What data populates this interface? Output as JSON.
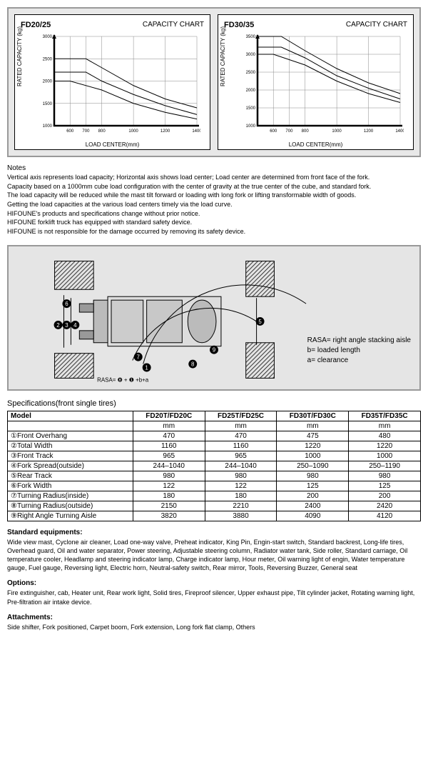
{
  "charts": [
    {
      "model_label": "FD20/25",
      "title": "CAPACITY CHART",
      "y_axis_label": "RATED CAPACITY (kg)",
      "x_axis_label": "LOAD CENTER(mm)",
      "y_ticks": [
        "3000",
        "2500",
        "2000",
        "1500",
        "1000"
      ],
      "x_ticks": [
        "600",
        "700",
        "800",
        "1000",
        "1200",
        "1400"
      ],
      "ylim": [
        1000,
        3000
      ],
      "xlim": [
        500,
        1400
      ],
      "grid_color": "#888",
      "background_color": "#ffffff",
      "series": [
        {
          "color": "#000",
          "points": [
            [
              500,
              2500
            ],
            [
              700,
              2500
            ],
            [
              800,
              2300
            ],
            [
              1000,
              1900
            ],
            [
              1200,
              1600
            ],
            [
              1400,
              1400
            ]
          ]
        },
        {
          "color": "#000",
          "points": [
            [
              500,
              2200
            ],
            [
              700,
              2200
            ],
            [
              800,
              2000
            ],
            [
              1000,
              1700
            ],
            [
              1200,
              1450
            ],
            [
              1400,
              1250
            ]
          ]
        },
        {
          "color": "#000",
          "points": [
            [
              500,
              2000
            ],
            [
              600,
              2000
            ],
            [
              800,
              1800
            ],
            [
              1000,
              1500
            ],
            [
              1200,
              1300
            ],
            [
              1400,
              1150
            ]
          ]
        }
      ]
    },
    {
      "model_label": "FD30/35",
      "title": "CAPACITY CHART",
      "y_axis_label": "RATED CAPACITY (kg)",
      "x_axis_label": "LOAD CENTER(mm)",
      "y_ticks": [
        "3500",
        "3000",
        "2500",
        "2000",
        "1500",
        "1000"
      ],
      "x_ticks": [
        "600",
        "700",
        "800",
        "1000",
        "1200",
        "1400"
      ],
      "ylim": [
        1000,
        3500
      ],
      "xlim": [
        500,
        1400
      ],
      "grid_color": "#888",
      "background_color": "#ffffff",
      "series": [
        {
          "color": "#000",
          "points": [
            [
              500,
              3500
            ],
            [
              650,
              3500
            ],
            [
              800,
              3100
            ],
            [
              1000,
              2600
            ],
            [
              1200,
              2200
            ],
            [
              1400,
              1900
            ]
          ]
        },
        {
          "color": "#000",
          "points": [
            [
              500,
              3200
            ],
            [
              650,
              3200
            ],
            [
              800,
              2900
            ],
            [
              1000,
              2400
            ],
            [
              1200,
              2050
            ],
            [
              1400,
              1750
            ]
          ]
        },
        {
          "color": "#000",
          "points": [
            [
              500,
              3000
            ],
            [
              600,
              3000
            ],
            [
              800,
              2700
            ],
            [
              1000,
              2250
            ],
            [
              1200,
              1900
            ],
            [
              1400,
              1650
            ]
          ]
        }
      ]
    }
  ],
  "notes": {
    "heading": "Notes",
    "lines": [
      "Vertical axis represents load capacity; Horizontal axis shows load center; Load center are determined from front face of the fork.",
      "Capacity based on a 1000mm cube load configuration with the center of gravity at the true center of the cube, and standard fork.",
      "The load capacity will be reduced while the mast tilt forward or loading with long fork or lifting transformable width of goods.",
      "Getting the load capacities at the various load centers timely via the load curve.",
      "HIFOUNE's products and specifications change without prior notice.",
      "HIFOUNE forklift truck has equipped with standard safety device.",
      "HIFOUNE is not responsible for the damage occurred by removing its safety device."
    ]
  },
  "diagram": {
    "dimension_markers": [
      "2",
      "3",
      "4",
      "5",
      "6",
      "7",
      "8",
      "9",
      "1"
    ],
    "rasa_formula": "RASA= ❽ + ❶ +b+a",
    "legend": {
      "rasa": "RASA= right angle stacking aisle",
      "b": "b= loaded length",
      "a": "a= clearance"
    }
  },
  "specifications": {
    "heading": "Specifications(front single tires)",
    "model_header": "Model",
    "columns": [
      "FD20T/FD20C",
      "FD25T/FD25C",
      "FD30T/FD30C",
      "FD35T/FD35C"
    ],
    "unit_row": [
      "mm",
      "mm",
      "mm",
      "mm"
    ],
    "rows": [
      {
        "label": "①Front Overhang",
        "values": [
          "470",
          "470",
          "475",
          "480"
        ]
      },
      {
        "label": "②Total Width",
        "values": [
          "1160",
          "1160",
          "1220",
          "1220"
        ]
      },
      {
        "label": "③Front Track",
        "values": [
          "965",
          "965",
          "1000",
          "1000"
        ]
      },
      {
        "label": "④Fork Spread(outside)",
        "values": [
          "244–1040",
          "244–1040",
          "250–1090",
          "250–1190"
        ]
      },
      {
        "label": "⑤Rear Track",
        "values": [
          "980",
          "980",
          "980",
          "980"
        ]
      },
      {
        "label": "⑥Fork Width",
        "values": [
          "122",
          "122",
          "125",
          "125"
        ]
      },
      {
        "label": "⑦Turning Radius(inside)",
        "values": [
          "180",
          "180",
          "200",
          "200"
        ]
      },
      {
        "label": "⑧Turning Radius(outside)",
        "values": [
          "2150",
          "2210",
          "2400",
          "2420"
        ]
      },
      {
        "label": "⑨Right Angle Turning Aisle",
        "values": [
          "3820",
          "3880",
          "4090",
          "4120"
        ]
      }
    ]
  },
  "standard_equipment": {
    "heading": "Standard equipments:",
    "body": "Wide view mast, Cyclone air cleaner, Load one-way valve, Preheat indicator, King Pin, Engin-start switch, Standard backrest, Long-life tires, Overhead guard, Oil and water separator, Power steering, Adjustable steering column, Radiator water tank, Side roller, Standard carriage, Oil temperature cooler, Headlamp and steering indicator lamp, Charge indicator lamp, Hour meter, Oil warning light of engin, Water temperature gauge, Fuel gauge, Reversing light, Electric horn, Neutral-safety switch, Rear mirror, Tools, Reversing Buzzer, General seat"
  },
  "options": {
    "heading": "Options:",
    "body": "Fire extinguisher, cab, Heater unit, Rear work light, Solid tires, Fireproof silencer, Upper exhaust pipe, Tilt cylinder jacket, Rotating warning light, Pre-filtration air intake device."
  },
  "attachments": {
    "heading": "Attachments:",
    "body": "Side shifter, Fork positioned, Carpet boom, Fork extension, Long fork flat clamp, Others"
  }
}
